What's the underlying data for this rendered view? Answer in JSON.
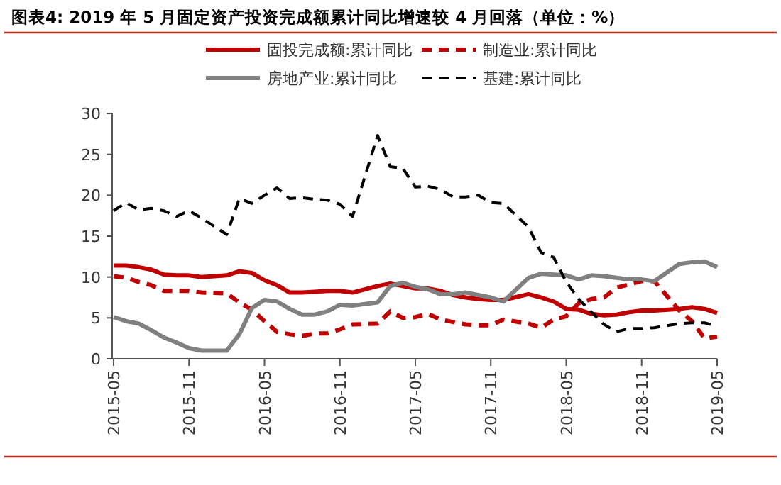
{
  "chart_data": {
    "type": "line",
    "title": "图表4:  2019 年 5 月固定资产投资完成额累计同比增速较 4 月回落（单位：%）",
    "x": [
      "2015-05",
      "2015-06",
      "2015-07",
      "2015-08",
      "2015-09",
      "2015-10",
      "2015-11",
      "2015-12",
      "2016-02",
      "2016-03",
      "2016-04",
      "2016-05",
      "2016-06",
      "2016-07",
      "2016-08",
      "2016-09",
      "2016-10",
      "2016-11",
      "2016-12",
      "2017-02",
      "2017-03",
      "2017-04",
      "2017-05",
      "2017-06",
      "2017-07",
      "2017-08",
      "2017-09",
      "2017-10",
      "2017-11",
      "2017-12",
      "2018-02",
      "2018-03",
      "2018-04",
      "2018-05",
      "2018-06",
      "2018-07",
      "2018-08",
      "2018-09",
      "2018-10",
      "2018-11",
      "2018-12",
      "2019-02",
      "2019-03",
      "2019-04",
      "2019-05"
    ],
    "series": [
      {
        "name": "固投完成额:累计同比",
        "color": "#c00000",
        "line_style": "solid",
        "values": [
          11.4,
          11.4,
          11.2,
          10.9,
          10.3,
          10.2,
          10.2,
          10.0,
          10.2,
          10.7,
          10.5,
          9.6,
          9.0,
          8.1,
          8.1,
          8.2,
          8.3,
          8.3,
          8.1,
          8.9,
          9.2,
          8.9,
          8.6,
          8.6,
          8.3,
          7.8,
          7.5,
          7.3,
          7.2,
          7.2,
          7.9,
          7.5,
          7.0,
          6.1,
          6.0,
          5.5,
          5.3,
          5.4,
          5.7,
          5.9,
          5.9,
          6.1,
          6.3,
          6.1,
          5.6
        ]
      },
      {
        "name": "制造业:累计同比",
        "color": "#c00000",
        "line_style": "dashed",
        "values": [
          10.1,
          9.9,
          9.4,
          9.0,
          8.3,
          8.3,
          8.3,
          8.1,
          8.0,
          6.9,
          6.0,
          4.6,
          3.3,
          3.0,
          2.8,
          3.1,
          3.1,
          3.6,
          4.2,
          4.3,
          5.8,
          5.0,
          5.1,
          5.5,
          4.8,
          4.5,
          4.2,
          4.1,
          4.1,
          4.8,
          4.3,
          3.8,
          4.8,
          5.2,
          6.8,
          7.3,
          7.5,
          8.7,
          9.1,
          9.5,
          9.5,
          5.9,
          4.6,
          2.5,
          2.7
        ]
      },
      {
        "name": "房地产业:累计同比",
        "color": "#808080",
        "line_style": "solid",
        "values": [
          5.1,
          4.6,
          4.3,
          3.5,
          2.6,
          2.0,
          1.3,
          1.0,
          1.0,
          3.0,
          6.2,
          7.2,
          7.0,
          6.1,
          5.4,
          5.4,
          5.8,
          6.6,
          6.5,
          6.9,
          8.9,
          9.3,
          8.8,
          8.5,
          7.9,
          7.9,
          8.1,
          7.8,
          7.5,
          7.0,
          9.9,
          10.4,
          10.3,
          10.2,
          9.7,
          10.2,
          10.1,
          9.9,
          9.7,
          9.7,
          9.5,
          11.6,
          11.8,
          11.9,
          11.2
        ]
      },
      {
        "name": "基建:累计同比",
        "color": "#000000",
        "line_style": "dashed",
        "values": [
          18.1,
          19.1,
          18.2,
          18.4,
          18.1,
          17.4,
          18.1,
          17.2,
          15.2,
          19.6,
          19.0,
          20.0,
          20.9,
          19.6,
          19.7,
          19.5,
          19.4,
          18.9,
          17.4,
          27.3,
          23.5,
          23.3,
          21.0,
          21.1,
          20.7,
          19.8,
          19.8,
          20.0,
          19.1,
          19.0,
          16.1,
          13.0,
          12.4,
          9.4,
          7.3,
          5.7,
          4.2,
          3.3,
          3.7,
          3.7,
          3.8,
          4.3,
          4.4,
          4.4,
          4.0
        ]
      }
    ],
    "xlim": [
      "2015-05",
      "2019-05"
    ],
    "xticks": [
      "2015-05",
      "2015-11",
      "2016-05",
      "2016-11",
      "2017-05",
      "2017-11",
      "2018-05",
      "2018-11",
      "2019-05"
    ],
    "ylim": [
      0,
      30
    ],
    "yticks": [
      0,
      5,
      10,
      15,
      20,
      25,
      30
    ],
    "grid": false,
    "legend": "top",
    "marker": "none"
  }
}
